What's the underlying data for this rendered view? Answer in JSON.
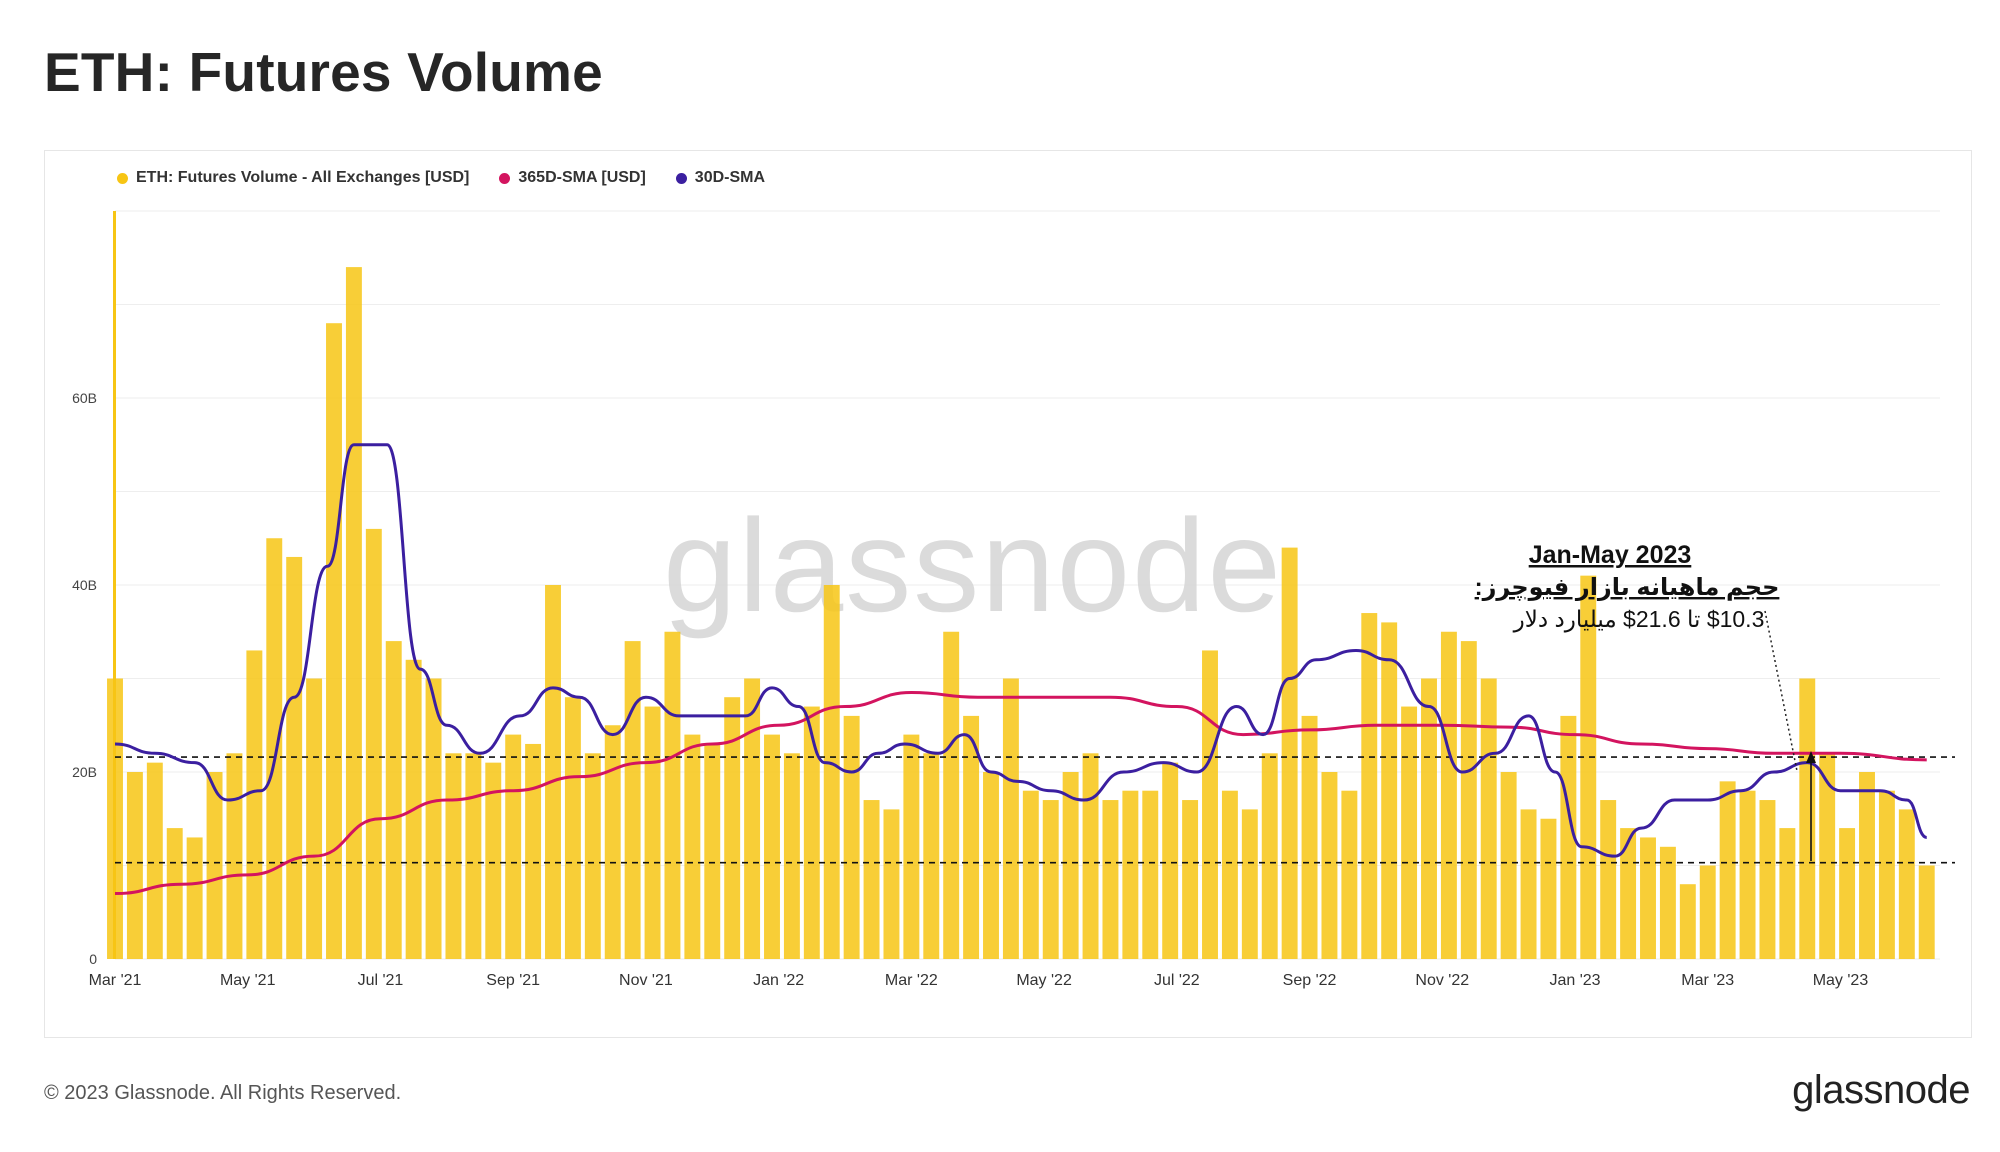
{
  "title": "ETH: Futures Volume",
  "legend": [
    {
      "label": "ETH: Futures Volume - All Exchanges [USD]",
      "color": "#f7c514"
    },
    {
      "label": "365D-SMA [USD]",
      "color": "#d3145f"
    },
    {
      "label": "30D-SMA",
      "color": "#3b1fa0"
    }
  ],
  "watermark": "glassnode",
  "annotation": {
    "line1": "Jan-May 2023",
    "line2": "حجم ماهیانه بازار فیوچرز:",
    "line3": "$10.3 تا 21.6$ میلیارد دلار"
  },
  "footer": {
    "copyright": "© 2023 Glassnode. All Rights Reserved.",
    "logo": "glassnode"
  },
  "chart_data": {
    "type": "bar",
    "x_tick_labels": [
      "Mar '21",
      "May '21",
      "Jul '21",
      "Sep '21",
      "Nov '21",
      "Jan '22",
      "Mar '22",
      "May '22",
      "Jul '22",
      "Sep '22",
      "Nov '22",
      "Jan '23",
      "Mar '23",
      "May '23"
    ],
    "y_tick_labels": [
      "0",
      "20B",
      "40B",
      "60B"
    ],
    "ylim": [
      0,
      80
    ],
    "y_unit": "B USD",
    "xlim_months": [
      0,
      27.5
    ],
    "reference_lines": [
      21.6,
      10.3
    ],
    "series": [
      {
        "name": "ETH: Futures Volume - All Exchanges [USD]",
        "type": "bar",
        "color": "#f7c514",
        "x_months": [
          0,
          0.3,
          0.6,
          0.9,
          1.2,
          1.5,
          1.8,
          2.1,
          2.4,
          2.7,
          3.0,
          3.3,
          3.6,
          3.9,
          4.2,
          4.5,
          4.8,
          5.1,
          5.4,
          5.7,
          6.0,
          6.3,
          6.6,
          6.9,
          7.2,
          7.5,
          7.8,
          8.1,
          8.4,
          8.7,
          9.0,
          9.3,
          9.6,
          9.9,
          10.2,
          10.5,
          10.8,
          11.1,
          11.4,
          11.7,
          12.0,
          12.3,
          12.6,
          12.9,
          13.2,
          13.5,
          13.8,
          14.1,
          14.4,
          14.7,
          15.0,
          15.3,
          15.6,
          15.9,
          16.2,
          16.5,
          16.8,
          17.1,
          17.4,
          17.7,
          18.0,
          18.3,
          18.6,
          18.9,
          19.2,
          19.5,
          19.8,
          20.1,
          20.4,
          20.7,
          21.0,
          21.3,
          21.6,
          21.9,
          22.2,
          22.5,
          22.8,
          23.1,
          23.4,
          23.7,
          24.0,
          24.3,
          24.6,
          24.9,
          25.2,
          25.5,
          25.8,
          26.1,
          26.4,
          26.7,
          27.0,
          27.3
        ],
        "values": [
          30,
          20,
          21,
          14,
          13,
          20,
          22,
          33,
          45,
          43,
          30,
          68,
          74,
          46,
          34,
          32,
          30,
          22,
          22,
          21,
          24,
          23,
          40,
          28,
          22,
          25,
          34,
          27,
          35,
          24,
          23,
          28,
          30,
          24,
          22,
          27,
          40,
          26,
          17,
          16,
          24,
          22,
          35,
          26,
          20,
          30,
          18,
          17,
          20,
          22,
          17,
          18,
          18,
          21,
          17,
          33,
          18,
          16,
          22,
          44,
          26,
          20,
          18,
          37,
          36,
          27,
          30,
          35,
          34,
          30,
          20,
          16,
          15,
          26,
          41,
          17,
          14,
          13,
          12,
          8,
          10,
          19,
          18,
          17,
          14,
          30,
          22,
          14,
          20,
          18,
          16,
          10
        ]
      },
      {
        "name": "365D-SMA [USD]",
        "type": "line",
        "color": "#d3145f",
        "x_months": [
          0,
          1,
          2,
          3,
          4,
          5,
          6,
          7,
          8,
          9,
          10,
          11,
          12,
          13,
          14,
          15,
          16,
          17,
          18,
          19,
          20,
          21,
          22,
          23,
          24,
          25,
          26,
          27.3
        ],
        "values": [
          7,
          8,
          9,
          11,
          15,
          17,
          18,
          19.5,
          21,
          23,
          25,
          27,
          28.5,
          28,
          28,
          28,
          27,
          24,
          24.5,
          25,
          25,
          24.8,
          24,
          23,
          22.5,
          22,
          22,
          21.3
        ]
      },
      {
        "name": "30D-SMA",
        "type": "line",
        "color": "#3b1fa0",
        "x_months": [
          0,
          0.6,
          1.2,
          1.7,
          2.2,
          2.7,
          3.2,
          3.6,
          4.1,
          4.6,
          5.0,
          5.5,
          6.1,
          6.6,
          7.0,
          7.5,
          8.0,
          8.5,
          9.0,
          9.5,
          9.9,
          10.3,
          10.7,
          11.1,
          11.5,
          11.9,
          12.4,
          12.8,
          13.2,
          13.6,
          14.1,
          14.6,
          15.2,
          15.8,
          16.3,
          16.9,
          17.3,
          17.7,
          18.1,
          18.7,
          19.2,
          19.8,
          20.3,
          20.8,
          21.3,
          21.7,
          22.1,
          22.6,
          23.0,
          23.5,
          24.0,
          24.5,
          25.0,
          25.5,
          26.0,
          26.6,
          27.0,
          27.3
        ],
        "values": [
          23,
          22,
          21,
          17,
          18,
          28,
          42,
          55,
          55,
          31,
          25,
          22,
          26,
          29,
          28,
          24,
          28,
          26,
          26,
          26,
          29,
          27,
          21,
          20,
          22,
          23,
          22,
          24,
          20,
          19,
          18,
          17,
          20,
          21,
          20,
          27,
          24,
          30,
          32,
          33,
          32,
          27,
          20,
          22,
          26,
          20,
          12,
          11,
          14,
          17,
          17,
          18,
          20,
          21,
          18,
          18,
          17,
          13
        ]
      }
    ]
  }
}
